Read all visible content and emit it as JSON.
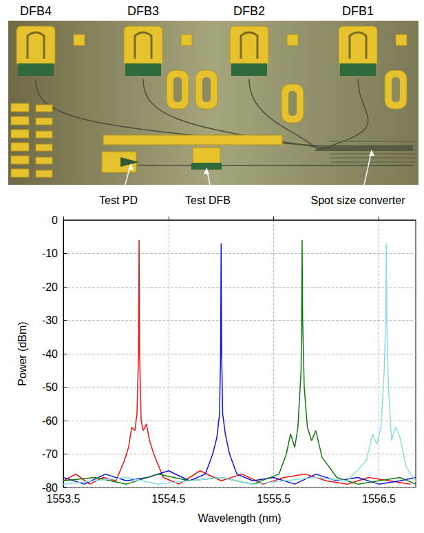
{
  "photo_labels": {
    "top": [
      "DFB4",
      "DFB3",
      "DFB2",
      "DFB1"
    ],
    "bottom": [
      "Test PD",
      "Test DFB",
      "Spot size converter"
    ]
  },
  "chart_data": {
    "type": "line",
    "x_label": "Wavelength (nm)",
    "y_label": "Power (dBm)",
    "xlim": [
      1553.5,
      1556.85
    ],
    "xticks": [
      1553.5,
      1554.5,
      1555.5,
      1556.5
    ],
    "ylim": [
      -80,
      0
    ],
    "yticks": [
      -80,
      -70,
      -60,
      -50,
      -40,
      -30,
      -20,
      -10,
      0
    ],
    "grid": true,
    "series": [
      {
        "color": "#ee1111",
        "x": [
          1553.5,
          1553.62,
          1553.75,
          1553.88,
          1554.0,
          1554.08,
          1554.12,
          1554.15,
          1554.18,
          1554.2,
          1554.215,
          1554.22,
          1554.225,
          1554.24,
          1554.26,
          1554.29,
          1554.32,
          1554.36,
          1554.45,
          1554.6,
          1554.8,
          1555.0,
          1555.2,
          1555.4,
          1555.6,
          1555.8,
          1556.0,
          1556.2,
          1556.4,
          1556.6,
          1556.8
        ],
        "values": [
          -78,
          -76,
          -79,
          -77,
          -78,
          -72,
          -68,
          -62,
          -63,
          -58,
          -40,
          -6,
          -40,
          -60,
          -63,
          -61,
          -66,
          -70,
          -77,
          -79,
          -75,
          -78,
          -76,
          -79,
          -77,
          -76,
          -78,
          -79,
          -77,
          -78,
          -79
        ]
      },
      {
        "color": "#1111dd",
        "x": [
          1553.5,
          1553.7,
          1553.9,
          1554.1,
          1554.3,
          1554.5,
          1554.7,
          1554.85,
          1554.92,
          1554.96,
          1554.985,
          1554.995,
          1555.0,
          1555.005,
          1555.015,
          1555.04,
          1555.08,
          1555.15,
          1555.3,
          1555.5,
          1555.7,
          1555.9,
          1556.1,
          1556.3,
          1556.5,
          1556.7,
          1556.85
        ],
        "values": [
          -77,
          -79,
          -76,
          -78,
          -77,
          -75,
          -78,
          -76,
          -70,
          -65,
          -58,
          -40,
          -7,
          -40,
          -58,
          -64,
          -70,
          -76,
          -78,
          -77,
          -79,
          -76,
          -78,
          -77,
          -79,
          -78,
          -77
        ]
      },
      {
        "color": "#117711",
        "x": [
          1553.5,
          1553.8,
          1554.1,
          1554.4,
          1554.7,
          1555.0,
          1555.3,
          1555.55,
          1555.62,
          1555.66,
          1555.7,
          1555.73,
          1555.76,
          1555.765,
          1555.77,
          1555.775,
          1555.79,
          1555.82,
          1555.86,
          1555.9,
          1555.96,
          1556.1,
          1556.3,
          1556.5,
          1556.7,
          1556.85
        ],
        "values": [
          -78,
          -77,
          -79,
          -76,
          -78,
          -77,
          -79,
          -76,
          -70,
          -64,
          -68,
          -62,
          -45,
          -30,
          -6,
          -30,
          -50,
          -62,
          -66,
          -63,
          -71,
          -77,
          -79,
          -78,
          -77,
          -79
        ]
      },
      {
        "color": "#88dde8",
        "x": [
          1553.5,
          1553.8,
          1554.1,
          1554.4,
          1554.7,
          1555.0,
          1555.3,
          1555.6,
          1555.9,
          1556.2,
          1556.38,
          1556.44,
          1556.48,
          1556.52,
          1556.55,
          1556.565,
          1556.57,
          1556.575,
          1556.59,
          1556.62,
          1556.66,
          1556.7,
          1556.76,
          1556.85
        ],
        "values": [
          -79,
          -78,
          -77,
          -79,
          -78,
          -77,
          -79,
          -78,
          -77,
          -78,
          -72,
          -64,
          -67,
          -62,
          -45,
          -30,
          -7,
          -30,
          -50,
          -66,
          -62,
          -65,
          -74,
          -78
        ]
      }
    ]
  }
}
